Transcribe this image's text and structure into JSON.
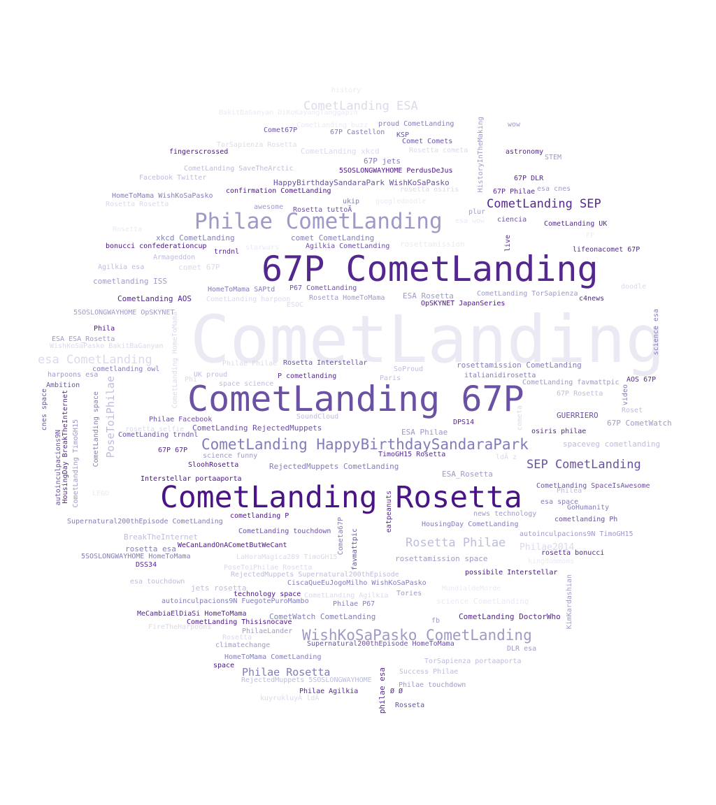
{
  "words": [
    {
      "text": "CometLanding",
      "color": "#ebe9f4"
    },
    {
      "text": "67P CometLanding",
      "color": "#54278f"
    },
    {
      "text": "CometLanding 67P",
      "color": "#6a51a3"
    },
    {
      "text": "CometLanding Rosetta",
      "color": "#4a1486"
    },
    {
      "text": "Philae CometLanding",
      "color": "#9e9ac8"
    },
    {
      "text": "CometLanding HappyBirthdaySandaraPark",
      "color": "#807dba"
    },
    {
      "text": "WishKoSaPasko CometLanding",
      "color": "#9e9ac8"
    },
    {
      "text": "CometLanding ESA",
      "color": "#dadaeb"
    },
    {
      "text": "CometLanding SEP",
      "color": "#54278f"
    },
    {
      "text": "SEP CometLanding",
      "color": "#6a51a3"
    },
    {
      "text": "esa CometLanding",
      "color": "#dadaeb"
    },
    {
      "text": "Rosetta Philae",
      "color": "#bcbddc"
    },
    {
      "text": "Philae Rosetta",
      "color": "#807dba"
    },
    {
      "text": "PoseToiPhilae",
      "color": "#bcbddc"
    },
    {
      "text": "history",
      "color": "#ebe9f4"
    },
    {
      "text": "BakitBaGanyan DiKoKayangTanggapin",
      "color": "#ebe9f4"
    },
    {
      "text": "CometLanding buzz",
      "color": "#ebe9f4"
    },
    {
      "text": "proud CometLanding",
      "color": "#807dba"
    },
    {
      "text": "wow",
      "color": "#9e9ac8"
    },
    {
      "text": "Comet67P",
      "color": "#6a51a3"
    },
    {
      "text": "67P Castellon",
      "color": "#807dba"
    },
    {
      "text": "KSP",
      "color": "#6a51a3"
    },
    {
      "text": "TorSapienza Rosetta",
      "color": "#dadaeb"
    },
    {
      "text": "Comet Comets",
      "color": "#6a51a3"
    },
    {
      "text": "fingerscrossed",
      "color": "#4a1486"
    },
    {
      "text": "CometLanding xkcd",
      "color": "#dadaeb"
    },
    {
      "text": "Rosetta cometa",
      "color": "#dadaeb"
    },
    {
      "text": "astronomy",
      "color": "#54278f"
    },
    {
      "text": "67P jets",
      "color": "#807dba"
    },
    {
      "text": "STEM",
      "color": "#9e9ac8"
    },
    {
      "text": "CometLanding SaveTheArctic",
      "color": "#bcbddc"
    },
    {
      "text": "5SOSLONGWAYHOME PerdusDeJus",
      "color": "#4a1486"
    },
    {
      "text": "Facebook Twitter",
      "color": "#bcbddc"
    },
    {
      "text": "HappyBirthdaySandaraPark WishKoSaPasko",
      "color": "#6a51a3"
    },
    {
      "text": "67P DLR",
      "color": "#54278f"
    },
    {
      "text": "rosetta osiris",
      "color": "#dadaeb"
    },
    {
      "text": "HistoryInTheMaking",
      "color": "#9e9ac8"
    },
    {
      "text": "esa cnes",
      "color": "#9e9ac8"
    },
    {
      "text": "HomeToMama WishKoSaPasko",
      "color": "#807dba"
    },
    {
      "text": "confirmation CometLanding",
      "color": "#4a1486"
    },
    {
      "text": "ukip",
      "color": "#807dba"
    },
    {
      "text": "67P Philae",
      "color": "#54278f"
    },
    {
      "text": "Rosetta Rosetta",
      "color": "#dadaeb"
    },
    {
      "text": "googledoodle",
      "color": "#ebe9f4"
    },
    {
      "text": "awesome",
      "color": "#9e9ac8"
    },
    {
      "text": "Rosetta tuttoÃ",
      "color": "#6a51a3"
    },
    {
      "text": "plur",
      "color": "#9e9ac8"
    },
    {
      "text": "ciencia",
      "color": "#6a51a3"
    },
    {
      "text": "esa wow",
      "color": "#ebe9f4"
    },
    {
      "text": "CometLanding UK",
      "color": "#54278f"
    },
    {
      "text": "comet CometLanding",
      "color": "#807dba"
    },
    {
      "text": "xkcd CometLanding",
      "color": "#807dba"
    },
    {
      "text": "Rosetta",
      "color": "#ebe9f4"
    },
    {
      "text": "rosettamission",
      "color": "#ebe9f4"
    },
    {
      "text": "FF",
      "color": "#ebe9f4"
    },
    {
      "text": "bonucci confederationcup",
      "color": "#4a1486"
    },
    {
      "text": "trndnl",
      "color": "#54278f"
    },
    {
      "text": "starwars",
      "color": "#ebe9f4"
    },
    {
      "text": "Agilkia CometLanding",
      "color": "#6a51a3"
    },
    {
      "text": "live",
      "color": "#54278f"
    },
    {
      "text": "lifeonacomet 67P",
      "color": "#54278f"
    },
    {
      "text": "Armageddon",
      "color": "#bcbddc"
    },
    {
      "text": "Agilkia esa",
      "color": "#bcbddc"
    },
    {
      "text": "comet 67P",
      "color": "#dadaeb"
    },
    {
      "text": "cometlanding ISS",
      "color": "#9e9ac8"
    },
    {
      "text": "HomeToMama SAPtd",
      "color": "#807dba"
    },
    {
      "text": "P67 CometLanding",
      "color": "#6a51a3"
    },
    {
      "text": "doodle",
      "color": "#dadaeb"
    },
    {
      "text": "CometLanding AOS",
      "color": "#54278f"
    },
    {
      "text": "CometLanding harpoon",
      "color": "#dadaeb"
    },
    {
      "text": "Rosetta HomeToMama",
      "color": "#9e9ac8"
    },
    {
      "text": "ESA Rosetta",
      "color": "#9e9ac8"
    },
    {
      "text": "CometLanding TorSapienza",
      "color": "#9e9ac8"
    },
    {
      "text": "c4news",
      "color": "#54278f"
    },
    {
      "text": "ESOC",
      "color": "#dadaeb"
    },
    {
      "text": "OpSKYNET JapanSeries",
      "color": "#4a1486"
    },
    {
      "text": "5SOSLONGWAYHOME OpSKYNET",
      "color": "#9e9ac8"
    },
    {
      "text": "science esa",
      "color": "#807dba"
    },
    {
      "text": "Phila",
      "color": "#4a1486"
    },
    {
      "text": "ESA ESA_Rosetta",
      "color": "#9e9ac8"
    },
    {
      "text": "WishKoSaPasko BakitBaGanyan",
      "color": "#dadaeb"
    },
    {
      "text": "cometlanding owl",
      "color": "#807dba"
    },
    {
      "text": "Philae Philae",
      "color": "#dadaeb"
    },
    {
      "text": "Rosetta Interstellar",
      "color": "#6a51a3"
    },
    {
      "text": "rosettamission CometLanding",
      "color": "#807dba"
    },
    {
      "text": "SoProud",
      "color": "#bcbddc"
    },
    {
      "text": "harpoons esa",
      "color": "#9e9ac8"
    },
    {
      "text": "UK proud",
      "color": "#bcbddc"
    },
    {
      "text": "P cometlanding",
      "color": "#54278f"
    },
    {
      "text": "italianidirosetta",
      "color": "#807dba"
    },
    {
      "text": "Paris",
      "color": "#bcbddc"
    },
    {
      "text": "AOS 67P",
      "color": "#54278f"
    },
    {
      "text": "Ambition",
      "color": "#6a51a3"
    },
    {
      "text": "space science",
      "color": "#bcbddc"
    },
    {
      "text": "CometLanding favmattpic",
      "color": "#9e9ac8"
    },
    {
      "text": "cnes space",
      "color": "#6a51a3"
    },
    {
      "text": "HousingDay BreakTheInternet",
      "color": "#54278f"
    },
    {
      "text": "CometLanding space",
      "color": "#807dba"
    },
    {
      "text": "CometLanding HomeToMama",
      "color": "#dadaeb"
    },
    {
      "text": "Phi",
      "color": "#dadaeb"
    },
    {
      "text": "67P Rosetta",
      "color": "#bcbddc"
    },
    {
      "text": "video",
      "color": "#807dba"
    },
    {
      "text": "Philae Facebook",
      "color": "#6a51a3"
    },
    {
      "text": "SoundCloud",
      "color": "#bcbddc"
    },
    {
      "text": "GUERRIERO",
      "color": "#6a51a3"
    },
    {
      "text": "Roset",
      "color": "#bcbddc"
    },
    {
      "text": "67P CometWatch",
      "color": "#9e9ac8"
    },
    {
      "text": "cometa",
      "color": "#dadaeb"
    },
    {
      "text": "autoinculpacions9N",
      "color": "#6a51a3"
    },
    {
      "text": "CometLanding TimoGH15",
      "color": "#9e9ac8"
    },
    {
      "text": "rosetta selfie",
      "color": "#dadaeb"
    },
    {
      "text": "CometLanding RejectedMuppets",
      "color": "#6a51a3"
    },
    {
      "text": "DPS14",
      "color": "#54278f"
    },
    {
      "text": "ESA Philae",
      "color": "#9e9ac8"
    },
    {
      "text": "osiris philae",
      "color": "#54278f"
    },
    {
      "text": "CometLanding trndnl",
      "color": "#6a51a3"
    },
    {
      "text": "spaceveg cometlanding",
      "color": "#bcbddc"
    },
    {
      "text": "67P 67P",
      "color": "#54278f"
    },
    {
      "text": "science funny",
      "color": "#9e9ac8"
    },
    {
      "text": "TimoGH15 Rosetta",
      "color": "#54278f"
    },
    {
      "text": "ldÃ z",
      "color": "#dadaeb"
    },
    {
      "text": "SloohRosetta",
      "color": "#4a1486"
    },
    {
      "text": "RejectedMuppets CometLanding",
      "color": "#807dba"
    },
    {
      "text": "Interstellar portaaporta",
      "color": "#4a1486"
    },
    {
      "text": "ESA_Rosetta",
      "color": "#9e9ac8"
    },
    {
      "text": "CometLanding SpaceIsAwesome",
      "color": "#6a51a3"
    },
    {
      "text": "LEGO",
      "color": "#ebe9f4"
    },
    {
      "text": "Philea",
      "color": "#bcbddc"
    },
    {
      "text": "esa space",
      "color": "#807dba"
    },
    {
      "text": "eatpeanuts",
      "color": "#54278f"
    },
    {
      "text": "GoHumanity",
      "color": "#807dba"
    },
    {
      "text": "cometlanding P",
      "color": "#4a1486"
    },
    {
      "text": "news technology",
      "color": "#9e9ac8"
    },
    {
      "text": "Supernatural200thEpisode CometLanding",
      "color": "#807dba"
    },
    {
      "text": "cometlanding Ph",
      "color": "#6a51a3"
    },
    {
      "text": "HousingDay CometLanding",
      "color": "#807dba"
    },
    {
      "text": "CometLanding touchdown",
      "color": "#6a51a3"
    },
    {
      "text": "Cometa67P",
      "color": "#807dba"
    },
    {
      "text": "BreakTheInternet",
      "color": "#bcbddc"
    },
    {
      "text": "autoinculpacions9N TimoGH15",
      "color": "#9e9ac8"
    },
    {
      "text": "WeCanLandOnACometButWeCant",
      "color": "#4a1486"
    },
    {
      "text": "Philae2014",
      "color": "#dadaeb"
    },
    {
      "text": "favmattpic",
      "color": "#6a51a3"
    },
    {
      "text": "rosetta esa",
      "color": "#807dba"
    },
    {
      "text": "rosetta bonucci",
      "color": "#54278f"
    },
    {
      "text": "5SOSLONGWAYHOME HomeToMama",
      "color": "#807dba"
    },
    {
      "text": "LaHoraMagica289 TimoGH15",
      "color": "#dadaeb"
    },
    {
      "text": "rosettamission space",
      "color": "#9e9ac8"
    },
    {
      "text": "kingdommoms",
      "color": "#ebe9f4"
    },
    {
      "text": "DSS34",
      "color": "#54278f"
    },
    {
      "text": "PoseToiPhilae Rosetta",
      "color": "#dadaeb"
    },
    {
      "text": "RejectedMuppets Supernatural200thEpisode",
      "color": "#bcbddc"
    },
    {
      "text": "possibile Interstellar",
      "color": "#4a1486"
    },
    {
      "text": "esa touchdown",
      "color": "#bcbddc"
    },
    {
      "text": "jets rosetta",
      "color": "#bcbddc"
    },
    {
      "text": "CiscaQueEuJogoMilho WishKoSaPasko",
      "color": "#807dba"
    },
    {
      "text": "MundialdeMorde",
      "color": "#ebe9f4"
    },
    {
      "text": "technology space",
      "color": "#4a1486"
    },
    {
      "text": "Tories",
      "color": "#9e9ac8"
    },
    {
      "text": "KimKardashian",
      "color": "#9e9ac8"
    },
    {
      "text": "CometLanding Agilkia",
      "color": "#dadaeb"
    },
    {
      "text": "autoinculpacions9N FuegotePuroMambo",
      "color": "#807dba"
    },
    {
      "text": "Philae P67",
      "color": "#807dba"
    },
    {
      "text": "science CometLanding",
      "color": "#ebe9f4"
    },
    {
      "text": "MeCambiaElDiaSi HomeToMama",
      "color": "#54278f"
    },
    {
      "text": "CometWatch CometLanding",
      "color": "#807dba"
    },
    {
      "text": "CometLanding DoctorWho",
      "color": "#54278f"
    },
    {
      "text": "CometLanding Thisisnocave",
      "color": "#4a1486"
    },
    {
      "text": "fb",
      "color": "#9e9ac8"
    },
    {
      "text": "FireTheHarpoons",
      "color": "#dadaeb"
    },
    {
      "text": "PhilaeLander",
      "color": "#9e9ac8"
    },
    {
      "text": "Rosetta",
      "color": "#dadaeb"
    },
    {
      "text": "climatechange",
      "color": "#9e9ac8"
    },
    {
      "text": "Supernatural200thEpisode HomeToMama",
      "color": "#6a51a3"
    },
    {
      "text": "DLR esa",
      "color": "#9e9ac8"
    },
    {
      "text": "HomeToMama CometLanding",
      "color": "#807dba"
    },
    {
      "text": "TorSapienza portaaporta",
      "color": "#bcbddc"
    },
    {
      "text": "space",
      "color": "#4a1486"
    },
    {
      "text": "Success Philae",
      "color": "#bcbddc"
    },
    {
      "text": "RejectedMuppets 5SOSLONGWAYHOME",
      "color": "#bcbddc"
    },
    {
      "text": "Philae touchdown",
      "color": "#9e9ac8"
    },
    {
      "text": "philae esa",
      "color": "#54278f"
    },
    {
      "text": "Philae Agilkia",
      "color": "#54278f"
    },
    {
      "text": "Ø Ø",
      "color": "#54278f"
    },
    {
      "text": "kuyrukluyÃ ldÃ",
      "color": "#dadaeb"
    },
    {
      "text": "Rosseta",
      "color": "#6a51a3"
    }
  ]
}
